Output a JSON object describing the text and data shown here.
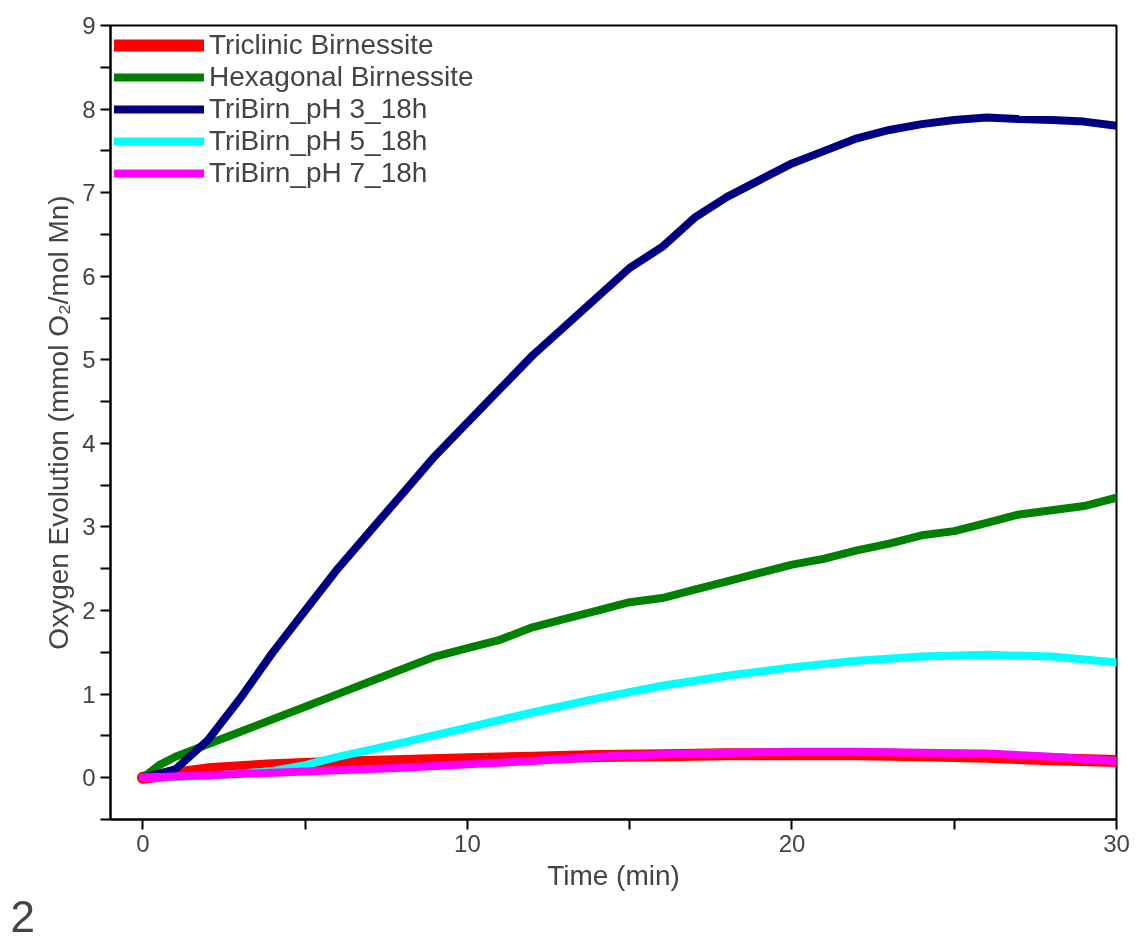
{
  "chart_data": {
    "type": "line",
    "xlabel": "Time (min)",
    "ylabel": "Oxygen Evolution (mmol O₂/mol Mn)",
    "annotations": [
      "2"
    ],
    "xlim": [
      -1,
      30
    ],
    "ylim": [
      -0.5,
      9
    ],
    "xticks": [
      0,
      {
        "value": 5,
        "label": null
      },
      10,
      {
        "value": 15,
        "label": null
      },
      20,
      {
        "value": 25,
        "label": null
      },
      30
    ],
    "yticks": [
      {
        "value": -0.5,
        "label": null
      },
      0,
      {
        "value": 0.5,
        "label": null
      },
      1,
      {
        "value": 1.5,
        "label": null
      },
      2,
      {
        "value": 2.5,
        "label": null
      },
      3,
      {
        "value": 3.5,
        "label": null
      },
      4,
      {
        "value": 4.5,
        "label": null
      },
      5,
      {
        "value": 5.5,
        "label": null
      },
      6,
      {
        "value": 6.5,
        "label": null
      },
      7,
      {
        "value": 7.5,
        "label": null
      },
      8,
      {
        "value": 8.5,
        "label": null
      },
      9
    ],
    "grid": false,
    "legend": "top left",
    "marker": "none",
    "line_style": "solid",
    "series": [
      {
        "name": "Triclinic Birnessite",
        "color": "#ff0000",
        "x": [
          0,
          2,
          4,
          6,
          8,
          10,
          12,
          14,
          16,
          18,
          20,
          22,
          24,
          26,
          28,
          30
        ],
        "values": [
          0,
          0.1,
          0.15,
          0.18,
          0.2,
          0.22,
          0.24,
          0.26,
          0.27,
          0.28,
          0.28,
          0.28,
          0.27,
          0.25,
          0.22,
          0.2
        ]
      },
      {
        "name": "Hexagonal Birnessite",
        "color": "#008000",
        "x": [
          0,
          0.5,
          1,
          2,
          3,
          4,
          5,
          6,
          7,
          8,
          9,
          10,
          11,
          12,
          13,
          14,
          15,
          16,
          17,
          18,
          19,
          20,
          21,
          22,
          23,
          24,
          25,
          26,
          27,
          28,
          29,
          30
        ],
        "values": [
          0,
          0.15,
          0.25,
          0.4,
          0.55,
          0.7,
          0.85,
          1.0,
          1.15,
          1.3,
          1.45,
          1.55,
          1.65,
          1.8,
          1.9,
          2.0,
          2.1,
          2.15,
          2.25,
          2.35,
          2.45,
          2.55,
          2.62,
          2.72,
          2.8,
          2.9,
          2.95,
          3.05,
          3.15,
          3.2,
          3.25,
          3.35
        ]
      },
      {
        "name": "TriBirn_pH 3_18h",
        "color": "#000080",
        "x": [
          0,
          1,
          2,
          3,
          4,
          5,
          6,
          7,
          8,
          9,
          10,
          11,
          12,
          13,
          14,
          15,
          16,
          17,
          18,
          19,
          20,
          21,
          22,
          23,
          24,
          25,
          26,
          27,
          28,
          29,
          30
        ],
        "values": [
          0,
          0.1,
          0.45,
          0.95,
          1.5,
          2.0,
          2.5,
          2.95,
          3.4,
          3.85,
          4.25,
          4.65,
          5.05,
          5.4,
          5.75,
          6.1,
          6.35,
          6.7,
          6.95,
          7.15,
          7.35,
          7.5,
          7.65,
          7.75,
          7.82,
          7.87,
          7.9,
          7.88,
          7.87,
          7.85,
          7.8
        ]
      },
      {
        "name": "TriBirn_pH 5_18h",
        "color": "#00ffff",
        "x": [
          0,
          2,
          4,
          5,
          6,
          8,
          10,
          12,
          14,
          16,
          18,
          20,
          22,
          24,
          26,
          28,
          30
        ],
        "values": [
          0,
          0.02,
          0.08,
          0.15,
          0.25,
          0.42,
          0.6,
          0.78,
          0.95,
          1.1,
          1.22,
          1.32,
          1.4,
          1.45,
          1.47,
          1.45,
          1.38
        ]
      },
      {
        "name": "TriBirn_pH 7_18h",
        "color": "#ff00ff",
        "x": [
          0,
          2,
          4,
          6,
          8,
          10,
          12,
          14,
          16,
          18,
          20,
          22,
          24,
          26,
          28,
          30
        ],
        "values": [
          0,
          0.03,
          0.06,
          0.09,
          0.12,
          0.16,
          0.2,
          0.25,
          0.28,
          0.3,
          0.31,
          0.31,
          0.3,
          0.29,
          0.25,
          0.2
        ]
      }
    ]
  }
}
